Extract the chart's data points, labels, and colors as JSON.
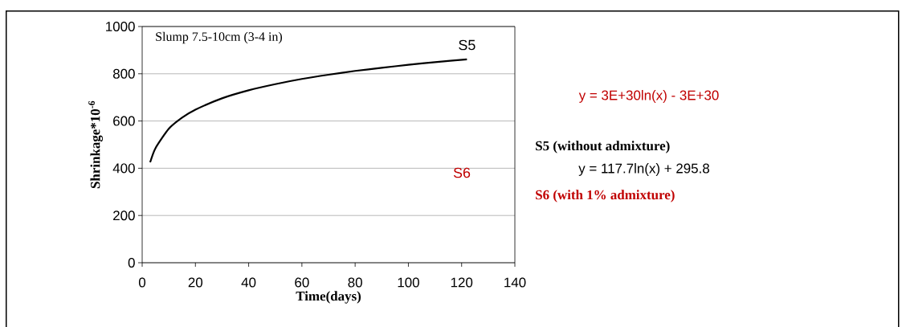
{
  "chart_data": {
    "type": "line",
    "xlabel": "Time(days)",
    "ylabel": "Shrinkage*10$^{-6}$",
    "xlim": [
      0,
      140
    ],
    "xticks": [
      0,
      20,
      40,
      60,
      80,
      100,
      120,
      140
    ],
    "ylim": [
      0,
      1000
    ],
    "yticks": [
      0,
      200,
      400,
      600,
      800,
      1000
    ],
    "grid": "y",
    "series": [
      {
        "name": "S5",
        "color": "#000000",
        "x": [
          3,
          5,
          10,
          15,
          20,
          30,
          40,
          50,
          60,
          70,
          80,
          90,
          100,
          110,
          122
        ],
        "values": [
          425,
          485,
          567,
          614,
          648,
          696,
          730,
          756,
          778,
          796,
          812,
          825,
          838,
          849,
          861
        ]
      }
    ],
    "annotations": [
      "Slump 7.5-10cm (3-4 in)",
      "S6",
      "y = 3E+30ln(x) - 3E+30",
      "S5 (without admixture)",
      "y = 117.7ln(x) + 295.8",
      "S6 (with 1% admixture)"
    ]
  }
}
